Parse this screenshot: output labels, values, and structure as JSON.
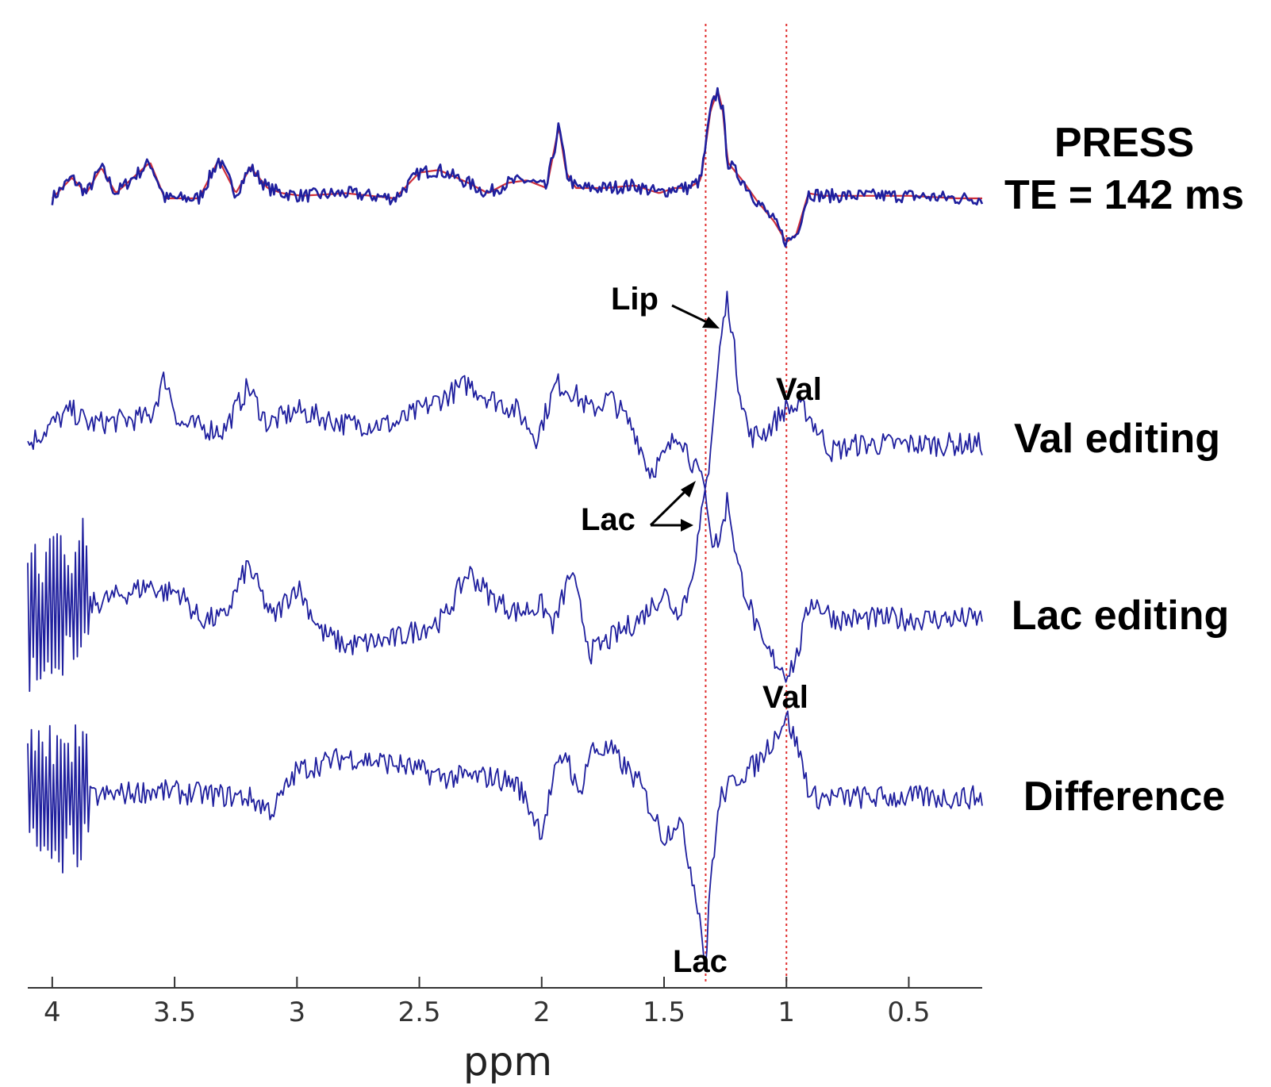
{
  "chart_data": {
    "type": "line",
    "xlabel": "ppm",
    "x_reversed": true,
    "xlim": [
      4.1,
      0.2
    ],
    "x_ticks": [
      "4",
      "3.5",
      "3",
      "2.5",
      "2",
      "1.5",
      "1",
      "0.5"
    ],
    "x_tick_values": [
      4,
      3.5,
      3,
      2.5,
      2,
      1.5,
      1,
      0.5
    ],
    "reference_lines_ppm": [
      1.33,
      1.0
    ],
    "reference_line_color": "#e03030",
    "trace_color": "#1f1f9e",
    "fit_color": "#d0303a",
    "series": [
      {
        "name": "PRESS TE = 142 ms",
        "label_lines": [
          "PRESS",
          "TE = 142 ms"
        ],
        "x": [
          4.0,
          3.92,
          3.86,
          3.8,
          3.74,
          3.6,
          3.54,
          3.48,
          3.4,
          3.32,
          3.25,
          3.19,
          3.12,
          3.06,
          2.98,
          2.8,
          2.6,
          2.5,
          2.42,
          2.3,
          2.22,
          2.14,
          2.06,
          1.98,
          1.93,
          1.9,
          1.86,
          1.74,
          1.62,
          1.52,
          1.46,
          1.4,
          1.35,
          1.31,
          1.28,
          1.26,
          1.24,
          1.18,
          1.12,
          1.05,
          1.0,
          0.96,
          0.91,
          0.85,
          0.7,
          0.5,
          0.3,
          0.2
        ],
        "y": [
          0.0,
          0.4,
          0.1,
          0.6,
          0.1,
          0.7,
          0.0,
          0.0,
          0.0,
          0.75,
          0.1,
          0.6,
          0.2,
          0.1,
          0.05,
          0.1,
          0.0,
          0.5,
          0.55,
          0.3,
          0.1,
          0.3,
          0.35,
          0.2,
          1.4,
          0.5,
          0.2,
          0.2,
          0.25,
          0.1,
          0.2,
          0.2,
          0.35,
          1.7,
          2.1,
          1.7,
          0.7,
          0.35,
          -0.05,
          -0.45,
          -0.85,
          -0.7,
          0.1,
          0.05,
          0.05,
          0.05,
          0.0,
          0.0
        ],
        "noise": 0.06
      },
      {
        "name": "Val editing",
        "x": [
          4.1,
          4.0,
          3.92,
          3.85,
          3.6,
          3.54,
          3.48,
          3.3,
          3.2,
          3.12,
          3.0,
          2.8,
          2.6,
          2.3,
          2.22,
          2.1,
          2.02,
          1.94,
          1.88,
          1.8,
          1.72,
          1.62,
          1.56,
          1.5,
          1.44,
          1.38,
          1.33,
          1.3,
          1.27,
          1.24,
          1.2,
          1.15,
          1.08,
          1.0,
          0.92,
          0.82,
          0.7,
          0.5,
          0.3,
          0.2
        ],
        "y": [
          0.0,
          0.3,
          0.5,
          0.3,
          0.4,
          1.0,
          0.3,
          0.2,
          0.85,
          0.3,
          0.5,
          0.3,
          0.3,
          0.9,
          0.7,
          0.5,
          0.1,
          0.9,
          0.8,
          0.5,
          0.7,
          0.2,
          -0.4,
          -0.2,
          0.2,
          -0.3,
          -0.7,
          0.3,
          1.5,
          2.2,
          1.0,
          0.1,
          0.2,
          0.55,
          0.5,
          -0.1,
          0.0,
          0.0,
          0.0,
          0.0
        ],
        "noise": 0.08
      },
      {
        "name": "Lac editing",
        "x": [
          4.1,
          3.9,
          3.85,
          3.6,
          3.55,
          3.48,
          3.4,
          3.3,
          3.2,
          3.1,
          3.0,
          2.9,
          2.8,
          2.6,
          2.4,
          2.3,
          2.2,
          2.1,
          2.0,
          1.95,
          1.88,
          1.8,
          1.72,
          1.6,
          1.5,
          1.45,
          1.4,
          1.36,
          1.33,
          1.3,
          1.27,
          1.24,
          1.2,
          1.1,
          1.05,
          1.0,
          0.96,
          0.9,
          0.8,
          0.7,
          0.5,
          0.2
        ],
        "y": [
          0.0,
          0.3,
          0.2,
          0.5,
          0.4,
          0.4,
          0.0,
          0.0,
          0.8,
          0.0,
          0.5,
          -0.2,
          -0.4,
          -0.3,
          0.0,
          0.7,
          0.3,
          0.1,
          0.2,
          -0.1,
          0.7,
          -0.5,
          -0.3,
          0.0,
          0.4,
          0.1,
          0.4,
          1.2,
          1.9,
          1.1,
          1.2,
          1.8,
          0.8,
          -0.4,
          -0.6,
          -0.8,
          -0.6,
          0.3,
          0.0,
          0.0,
          0.0,
          0.0
        ],
        "noise": 0.08,
        "noisy_range_ppm": [
          4.1,
          3.85
        ],
        "noisy_amplitude": 1.1
      },
      {
        "name": "Difference",
        "x": [
          4.1,
          3.85,
          3.6,
          3.2,
          3.1,
          3.0,
          2.8,
          2.6,
          2.4,
          2.2,
          2.1,
          2.0,
          1.95,
          1.9,
          1.85,
          1.8,
          1.72,
          1.6,
          1.5,
          1.44,
          1.4,
          1.36,
          1.34,
          1.33,
          1.31,
          1.27,
          1.2,
          1.12,
          1.05,
          1.0,
          0.95,
          0.9,
          0.85,
          0.7,
          0.5,
          0.2
        ],
        "y": [
          0.0,
          0.0,
          0.1,
          0.0,
          -0.2,
          0.4,
          0.6,
          0.5,
          0.3,
          0.3,
          0.2,
          -0.5,
          0.3,
          0.7,
          0.0,
          0.7,
          0.7,
          0.2,
          -0.6,
          -0.3,
          -0.9,
          -1.6,
          -2.2,
          -2.6,
          -1.2,
          0.0,
          0.3,
          0.5,
          0.9,
          1.2,
          0.7,
          0.0,
          0.0,
          0.0,
          0.0,
          0.0
        ],
        "noise": 0.08,
        "noisy_range_ppm": [
          4.1,
          3.85
        ],
        "noisy_amplitude": 1.1
      }
    ],
    "annotations": {
      "lip": "Lip",
      "val_top": "Val",
      "lac_mid": "Lac",
      "val_bottom": "Val",
      "lac_bottom": "Lac"
    }
  }
}
